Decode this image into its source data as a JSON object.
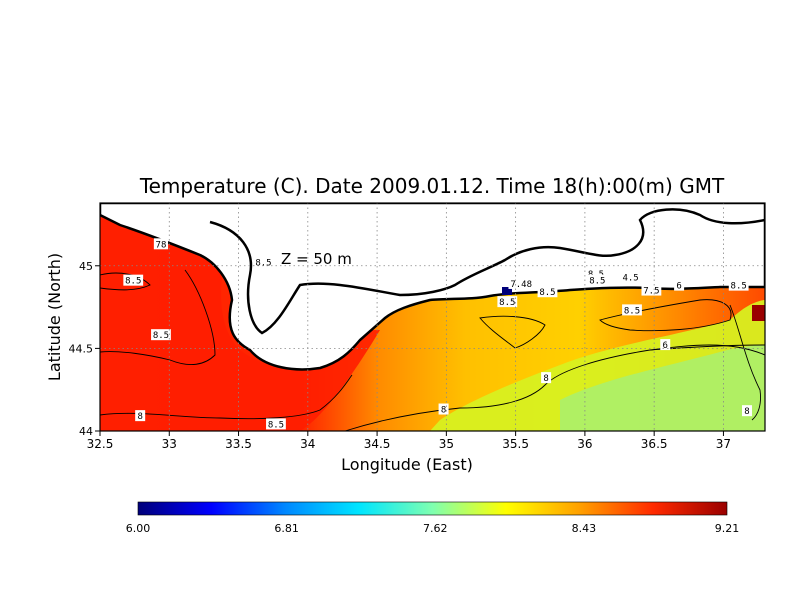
{
  "chart_data": {
    "type": "heatmap",
    "title": "Temperature (C). Date 2009.01.12. Time 18(h):00(m) GMT",
    "annotation": "Z = 50 m",
    "xlabel": "Longitude (East)",
    "ylabel": "Latitude (North)",
    "xlim": [
      32.5,
      37.3
    ],
    "ylim": [
      44.0,
      45.38
    ],
    "x_ticks": [
      "32.5",
      "33",
      "33.5",
      "34",
      "34.5",
      "35",
      "35.5",
      "36",
      "36.5",
      "37"
    ],
    "y_ticks": [
      "44",
      "44.5",
      "45"
    ],
    "grid": true,
    "colorbar": {
      "ticks": [
        "6.00",
        "6.81",
        "7.62",
        "8.43",
        "9.21"
      ],
      "min": 6.0,
      "max": 9.21,
      "colors": [
        "#00007a",
        "#0000ff",
        "#0088ff",
        "#00e5ff",
        "#7fffb0",
        "#ffff00",
        "#ffa000",
        "#ff2a00",
        "#9a0000"
      ]
    },
    "contour_labels": [
      {
        "text": "8.5",
        "lon": 32.74,
        "lat": 44.91
      },
      {
        "text": "8.5",
        "lon": 32.94,
        "lat": 44.58
      },
      {
        "text": "8.5",
        "lon": 33.68,
        "lat": 45.02
      },
      {
        "text": "78",
        "lon": 32.94,
        "lat": 45.13
      },
      {
        "text": "8",
        "lon": 32.79,
        "lat": 44.09
      },
      {
        "text": "8.5",
        "lon": 33.77,
        "lat": 44.04
      },
      {
        "text": "8",
        "lon": 34.98,
        "lat": 44.13
      },
      {
        "text": "7.48",
        "lon": 35.54,
        "lat": 44.89
      },
      {
        "text": "8.5",
        "lon": 35.73,
        "lat": 44.84
      },
      {
        "text": "8.5",
        "lon": 35.44,
        "lat": 44.78
      },
      {
        "text": "8.5",
        "lon": 36.08,
        "lat": 44.95
      },
      {
        "text": "8.5",
        "lon": 36.09,
        "lat": 44.91
      },
      {
        "text": "4.5",
        "lon": 36.33,
        "lat": 44.93
      },
      {
        "text": "7.5",
        "lon": 36.48,
        "lat": 44.85
      },
      {
        "text": "6",
        "lon": 36.68,
        "lat": 44.88
      },
      {
        "text": "8.5",
        "lon": 36.34,
        "lat": 44.73
      },
      {
        "text": "8.5",
        "lon": 37.11,
        "lat": 44.88
      },
      {
        "text": "6",
        "lon": 36.58,
        "lat": 44.52
      },
      {
        "text": "8",
        "lon": 35.72,
        "lat": 44.32
      },
      {
        "text": "8",
        "lon": 37.17,
        "lat": 44.12
      }
    ]
  }
}
